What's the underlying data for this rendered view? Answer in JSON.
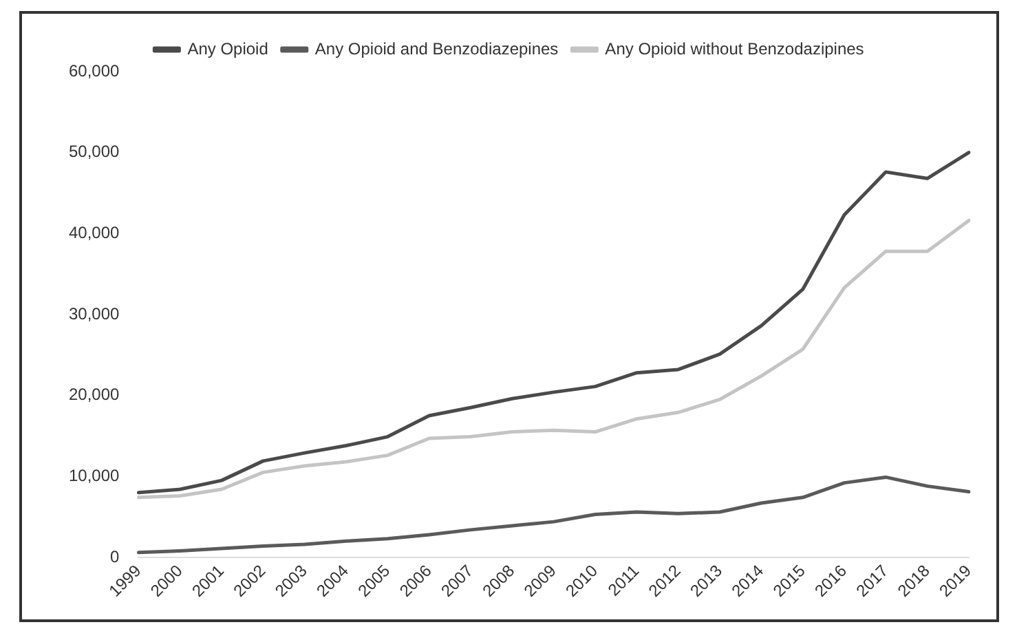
{
  "chart_data": {
    "type": "line",
    "categories": [
      "1999",
      "2000",
      "2001",
      "2002",
      "2003",
      "2004",
      "2005",
      "2006",
      "2007",
      "2008",
      "2009",
      "2010",
      "2011",
      "2012",
      "2013",
      "2014",
      "2015",
      "2016",
      "2017",
      "2018",
      "2019"
    ],
    "series": [
      {
        "name": "Any Opioid",
        "color": "#4a4a4a",
        "values": [
          8000,
          8400,
          9500,
          11900,
          12900,
          13800,
          14900,
          17500,
          18500,
          19600,
          20400,
          21100,
          22800,
          23200,
          25100,
          28600,
          33100,
          42300,
          47600,
          46800,
          50000
        ]
      },
      {
        "name": "Any Opioid and Benzodiazepines",
        "color": "#5a5a5a",
        "values": [
          600,
          800,
          1100,
          1400,
          1600,
          2000,
          2300,
          2800,
          3400,
          3900,
          4400,
          5300,
          5600,
          5400,
          5600,
          6700,
          7400,
          9200,
          9900,
          8800,
          8100
        ]
      },
      {
        "name": "Any Opioid without Benzodazipines",
        "color": "#c4c4c4",
        "values": [
          7400,
          7600,
          8400,
          10500,
          11300,
          11800,
          12600,
          14700,
          14900,
          15500,
          15700,
          15500,
          17100,
          17900,
          19500,
          22400,
          25700,
          33300,
          37800,
          37800,
          41600
        ]
      }
    ],
    "ylim": [
      0,
      60000
    ],
    "yticks": [
      0,
      {
        "value": 10000,
        "label": "10,000"
      },
      {
        "value": 20000,
        "label": "20,000"
      },
      {
        "value": 30000,
        "label": "30,000"
      },
      {
        "value": 40000,
        "label": "40,000"
      },
      {
        "value": 50000,
        "label": "50,000"
      },
      {
        "value": 60000,
        "label": "60,000"
      }
    ],
    "grid": false,
    "legend": "top",
    "marker": "none",
    "line_style": "solid"
  }
}
